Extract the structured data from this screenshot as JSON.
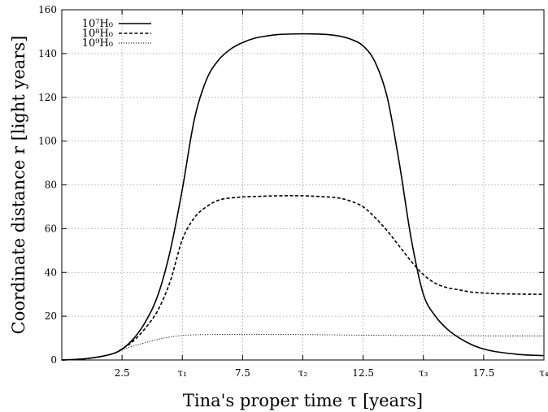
{
  "chart_data": {
    "type": "line",
    "xlabel": "Tina's proper time τ [years]",
    "ylabel": "Coordinate distance r [light years]",
    "xlim": [
      0,
      20
    ],
    "ylim": [
      0,
      160
    ],
    "grid": true,
    "legend_position": "top-left",
    "xticks": [
      {
        "value": 2.5,
        "label": "2.5"
      },
      {
        "value": 5,
        "label": "τ₁"
      },
      {
        "value": 7.5,
        "label": "7.5"
      },
      {
        "value": 10,
        "label": "τ₂"
      },
      {
        "value": 12.5,
        "label": "12.5"
      },
      {
        "value": 15,
        "label": "τ₃"
      },
      {
        "value": 17.5,
        "label": "17.5"
      },
      {
        "value": 20,
        "label": "τ₄"
      }
    ],
    "yticks": [
      {
        "value": 0,
        "label": "0"
      },
      {
        "value": 20,
        "label": "20"
      },
      {
        "value": 40,
        "label": "40"
      },
      {
        "value": 60,
        "label": "60"
      },
      {
        "value": 80,
        "label": "80"
      },
      {
        "value": 100,
        "label": "100"
      },
      {
        "value": 120,
        "label": "120"
      },
      {
        "value": 140,
        "label": "140"
      },
      {
        "value": 160,
        "label": "160"
      }
    ],
    "series": [
      {
        "name": "10⁷H₀",
        "style": "solid",
        "color": "#000000",
        "x": [
          0,
          1,
          2,
          2.5,
          3,
          3.5,
          4,
          4.5,
          5,
          5.5,
          6,
          6.5,
          7,
          7.5,
          8,
          8.5,
          9,
          10,
          11,
          11.5,
          12,
          12.5,
          13,
          13.5,
          14,
          14.5,
          15,
          15.5,
          16,
          16.5,
          17,
          17.5,
          18,
          19,
          20
        ],
        "y": [
          0,
          0.6,
          2.5,
          5,
          10,
          18,
          30,
          50,
          78,
          110,
          128,
          137,
          142,
          145,
          147,
          148,
          148.7,
          149,
          148.7,
          148,
          146.5,
          143.5,
          136,
          120,
          90,
          55,
          30,
          20,
          14,
          10,
          7,
          5,
          3.8,
          2.5,
          2
        ]
      },
      {
        "name": "10⁸H₀",
        "style": "dashed",
        "color": "#000000",
        "x": [
          0,
          1,
          2,
          2.5,
          3,
          3.5,
          4,
          4.5,
          5,
          5.5,
          6,
          6.5,
          7,
          7.5,
          8,
          9,
          10,
          11,
          11.5,
          12,
          12.5,
          13,
          13.5,
          14,
          14.5,
          15,
          15.5,
          16,
          16.5,
          17,
          17.5,
          18,
          19,
          20
        ],
        "y": [
          0,
          0.6,
          2.5,
          5,
          9,
          15,
          23,
          36,
          55,
          65,
          70,
          73,
          74,
          74.5,
          74.7,
          75,
          75,
          74.5,
          74,
          72.5,
          70,
          65,
          59,
          52,
          45,
          39,
          35,
          33,
          32,
          31,
          30.6,
          30.3,
          30.1,
          30
        ]
      },
      {
        "name": "10⁹H₀",
        "style": "dotted",
        "color": "#000000",
        "x": [
          0,
          1,
          2,
          2.5,
          3,
          3.5,
          4,
          4.5,
          5,
          5.5,
          6,
          7,
          8,
          9,
          10,
          11,
          12,
          13,
          14,
          15,
          16,
          17,
          18,
          19,
          20
        ],
        "y": [
          0,
          0.6,
          2.5,
          4.5,
          6.5,
          8,
          9.5,
          10.5,
          11.2,
          11.5,
          11.6,
          11.7,
          11.7,
          11.7,
          11.6,
          11.5,
          11.4,
          11.3,
          11.2,
          11.2,
          11.1,
          11.1,
          11,
          11,
          11
        ]
      }
    ]
  }
}
